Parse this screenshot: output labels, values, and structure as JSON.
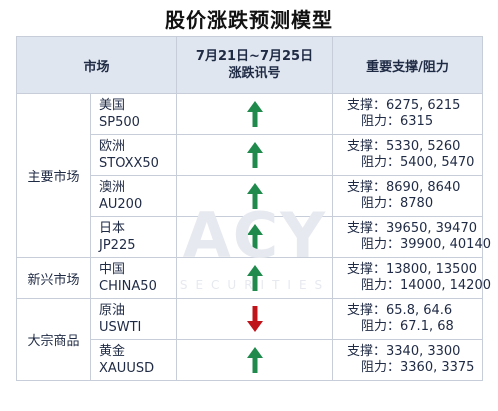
{
  "title": "股价涨跌预测模型",
  "watermark": {
    "logo": "ACY",
    "sub": "SECURITIES"
  },
  "header": {
    "market": "市场",
    "signal_line1": "7月21日~7月25日",
    "signal_line2": "涨跌讯号",
    "levels": "重要支撑/阻力"
  },
  "colors": {
    "up": "#1f8a4c",
    "down": "#c0141b",
    "header_bg": "#dfe6f0",
    "border": "#c8ced9"
  },
  "groups": {
    "main": "主要市场",
    "emerging": "新兴市场",
    "commodity": "大宗商品"
  },
  "rows": [
    {
      "name": "美国",
      "code": "SP500",
      "signal": "up",
      "support": "支撑：6275, 6215",
      "resistance": "阻力：6315"
    },
    {
      "name": "欧洲",
      "code": "STOXX50",
      "signal": "up",
      "support": "支撑：5330, 5260",
      "resistance": "阻力：5400, 5470"
    },
    {
      "name": "澳洲",
      "code": "AU200",
      "signal": "up",
      "support": "支撑：8690, 8640",
      "resistance": "阻力：8780"
    },
    {
      "name": "日本",
      "code": "JP225",
      "signal": "up",
      "support": "支撑：39650, 39470",
      "resistance": "阻力：39900, 40140"
    },
    {
      "name": "中国",
      "code": "CHINA50",
      "signal": "up",
      "support": "支撑：13800, 13500",
      "resistance": "阻力：14000, 14200"
    },
    {
      "name": "原油",
      "code": "USWTI",
      "signal": "down",
      "support": "支撑：65.8, 64.6",
      "resistance": "阻力：67.1, 68"
    },
    {
      "name": "黄金",
      "code": "XAUUSD",
      "signal": "up",
      "support": "支撑：3340, 3300",
      "resistance": "阻力：3360, 3375"
    }
  ]
}
